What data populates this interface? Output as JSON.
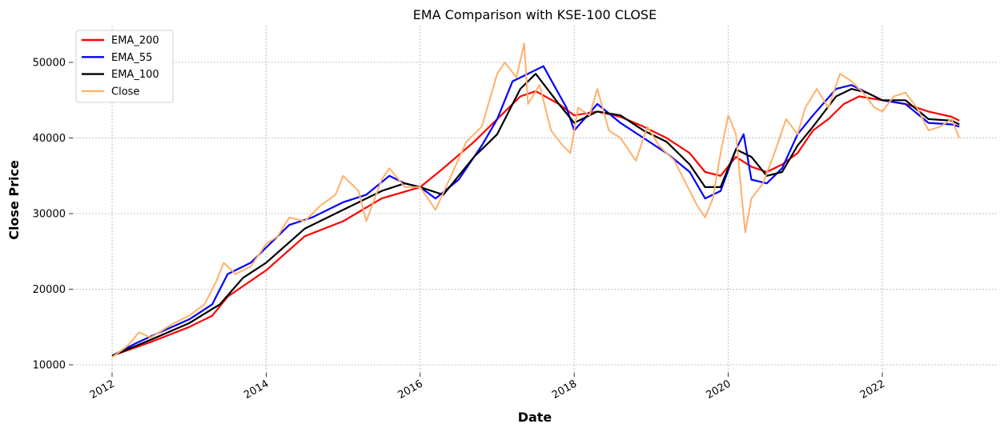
{
  "chart_data": {
    "type": "line",
    "title": "EMA Comparison with KSE-100 CLOSE",
    "xlabel": "Date",
    "ylabel": "Close Price",
    "xlim": [
      2012,
      2023.4
    ],
    "ylim": [
      8500,
      55000
    ],
    "grid": true,
    "legend_position": "top-left",
    "x_ticks": [
      2012,
      2014,
      2016,
      2018,
      2020,
      2022
    ],
    "x_tick_labels": [
      "2012",
      "2014",
      "2016",
      "2018",
      "2020",
      "2022"
    ],
    "y_ticks": [
      10000,
      20000,
      30000,
      40000,
      50000
    ],
    "y_tick_labels": [
      "10000",
      "20000",
      "30000",
      "40000",
      "50000"
    ],
    "series": [
      {
        "name": "EMA_200",
        "color": "#ff0000",
        "x": [
          2012.0,
          2012.5,
          2013.0,
          2013.3,
          2013.5,
          2014.0,
          2014.5,
          2015.0,
          2015.5,
          2016.0,
          2016.3,
          2016.7,
          2017.0,
          2017.3,
          2017.5,
          2017.8,
          2018.0,
          2018.3,
          2018.6,
          2018.9,
          2019.2,
          2019.5,
          2019.7,
          2019.9,
          2020.1,
          2020.3,
          2020.5,
          2020.7,
          2020.9,
          2021.1,
          2021.3,
          2021.5,
          2021.7,
          2022.0,
          2022.3,
          2022.6,
          2022.9,
          2023.0
        ],
        "values": [
          11200,
          13000,
          15000,
          16500,
          19000,
          22500,
          27000,
          29000,
          32000,
          33500,
          36000,
          39500,
          42500,
          45500,
          46200,
          44500,
          43000,
          43500,
          42800,
          41500,
          40000,
          38000,
          35500,
          35000,
          37500,
          36200,
          35500,
          36500,
          38000,
          41000,
          42500,
          44500,
          45500,
          45000,
          44500,
          43500,
          42800,
          42300
        ]
      },
      {
        "name": "EMA_55",
        "color": "#0000ff",
        "x": [
          2012.0,
          2012.3,
          2012.6,
          2013.0,
          2013.3,
          2013.5,
          2013.8,
          2014.0,
          2014.3,
          2014.6,
          2015.0,
          2015.3,
          2015.6,
          2015.8,
          2016.0,
          2016.2,
          2016.5,
          2016.8,
          2017.0,
          2017.2,
          2017.4,
          2017.6,
          2017.9,
          2018.0,
          2018.3,
          2018.6,
          2018.9,
          2019.2,
          2019.5,
          2019.7,
          2019.9,
          2020.1,
          2020.2,
          2020.3,
          2020.5,
          2020.7,
          2020.9,
          2021.1,
          2021.4,
          2021.6,
          2021.8,
          2022.0,
          2022.3,
          2022.6,
          2022.9,
          2023.0
        ],
        "values": [
          11200,
          12800,
          14200,
          16000,
          18000,
          22000,
          23500,
          25500,
          28500,
          29500,
          31500,
          32500,
          35000,
          34000,
          33500,
          32000,
          34500,
          39000,
          42500,
          47500,
          48500,
          49500,
          44000,
          41000,
          44500,
          42000,
          40000,
          38000,
          35500,
          32000,
          33000,
          38500,
          40500,
          34500,
          34000,
          36000,
          40500,
          43000,
          46500,
          47000,
          46000,
          45000,
          44500,
          42000,
          41800,
          41500
        ]
      },
      {
        "name": "EMA_100",
        "color": "#000000",
        "x": [
          2012.0,
          2012.5,
          2013.0,
          2013.4,
          2013.7,
          2014.0,
          2014.5,
          2015.0,
          2015.5,
          2015.8,
          2016.0,
          2016.3,
          2016.7,
          2017.0,
          2017.3,
          2017.5,
          2017.8,
          2018.0,
          2018.3,
          2018.6,
          2018.9,
          2019.2,
          2019.5,
          2019.7,
          2019.9,
          2020.1,
          2020.3,
          2020.5,
          2020.7,
          2020.9,
          2021.1,
          2021.4,
          2021.6,
          2021.8,
          2022.0,
          2022.3,
          2022.6,
          2022.9,
          2023.0
        ],
        "values": [
          11200,
          13300,
          15500,
          18000,
          21500,
          23500,
          28000,
          30500,
          33000,
          34000,
          33500,
          32500,
          37500,
          40500,
          46500,
          48500,
          44500,
          42000,
          43500,
          43000,
          41000,
          39500,
          36500,
          33500,
          33500,
          38500,
          37500,
          35000,
          35500,
          39000,
          41500,
          45500,
          46500,
          46000,
          45000,
          45000,
          42500,
          42300,
          41800
        ]
      },
      {
        "name": "Close",
        "color": "#ffb06b",
        "x": [
          2012.0,
          2012.2,
          2012.35,
          2012.5,
          2012.8,
          2013.0,
          2013.2,
          2013.35,
          2013.45,
          2013.6,
          2013.8,
          2014.0,
          2014.15,
          2014.3,
          2014.5,
          2014.7,
          2014.9,
          2015.0,
          2015.2,
          2015.3,
          2015.5,
          2015.6,
          2015.8,
          2016.0,
          2016.1,
          2016.2,
          2016.4,
          2016.6,
          2016.8,
          2016.9,
          2017.0,
          2017.1,
          2017.25,
          2017.35,
          2017.4,
          2017.55,
          2017.7,
          2017.85,
          2017.95,
          2018.05,
          2018.2,
          2018.3,
          2018.45,
          2018.6,
          2018.8,
          2018.95,
          2019.1,
          2019.3,
          2019.5,
          2019.6,
          2019.7,
          2019.8,
          2019.9,
          2020.0,
          2020.1,
          2020.15,
          2020.22,
          2020.3,
          2020.45,
          2020.6,
          2020.75,
          2020.9,
          2021.0,
          2021.15,
          2021.3,
          2021.45,
          2021.6,
          2021.75,
          2021.9,
          2022.0,
          2022.15,
          2022.3,
          2022.45,
          2022.6,
          2022.75,
          2022.9,
          2023.0
        ],
        "values": [
          11000,
          12500,
          14300,
          13600,
          15500,
          16500,
          18000,
          21000,
          23500,
          22000,
          23000,
          26000,
          27000,
          29500,
          29000,
          31000,
          32500,
          35000,
          33000,
          29000,
          34500,
          36000,
          33500,
          33500,
          32000,
          30500,
          35000,
          39500,
          41500,
          45000,
          48500,
          50000,
          48000,
          52500,
          44500,
          47000,
          41000,
          39000,
          38000,
          44000,
          43000,
          46500,
          41000,
          40000,
          37000,
          41500,
          39000,
          37000,
          33000,
          31000,
          29500,
          32000,
          38000,
          43000,
          40500,
          35000,
          27500,
          32000,
          34000,
          38000,
          42500,
          40500,
          44000,
          46500,
          44000,
          48500,
          47500,
          46000,
          44000,
          43500,
          45500,
          46000,
          44000,
          41000,
          41500,
          42500,
          40000
        ]
      }
    ]
  }
}
